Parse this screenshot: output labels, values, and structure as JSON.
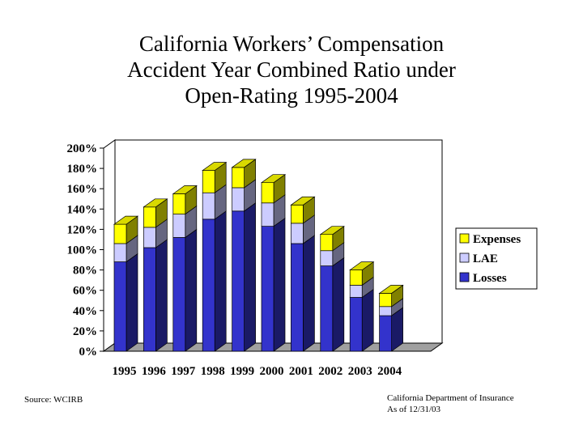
{
  "title_lines": [
    "California Workers’ Compensation",
    "Accident Year Combined Ratio under",
    "Open-Rating 1995-2004"
  ],
  "source_note": "Source: WCIRB",
  "dept_line1": "California Department of Insurance",
  "dept_line2": "As of 12/31/03",
  "chart_data": {
    "type": "bar",
    "stacked": true,
    "title": "California Workers’ Compensation Accident Year Combined Ratio under Open-Rating 1995-2004",
    "categories": [
      "1995",
      "1996",
      "1997",
      "1998",
      "1999",
      "2000",
      "2001",
      "2002",
      "2003",
      "2004"
    ],
    "series": [
      {
        "name": "Losses",
        "color": "#3333cc",
        "values": [
          88,
          102,
          112,
          130,
          138,
          123,
          106,
          84,
          53,
          35
        ]
      },
      {
        "name": "LAE",
        "color": "#ccccff",
        "values": [
          18,
          20,
          23,
          26,
          23,
          23,
          20,
          15,
          12,
          9
        ]
      },
      {
        "name": "Expenses",
        "color": "#ffff00",
        "values": [
          19,
          20,
          20,
          22,
          20,
          20,
          18,
          16,
          15,
          13
        ]
      }
    ],
    "legend_order": [
      "Expenses",
      "LAE",
      "Losses"
    ],
    "ylim": [
      0,
      200
    ],
    "yticks": [
      "0%",
      "20%",
      "40%",
      "60%",
      "80%",
      "100%",
      "120%",
      "140%",
      "160%",
      "180%",
      "200%"
    ],
    "xlabel": "",
    "ylabel": "",
    "legend_position": "right"
  }
}
